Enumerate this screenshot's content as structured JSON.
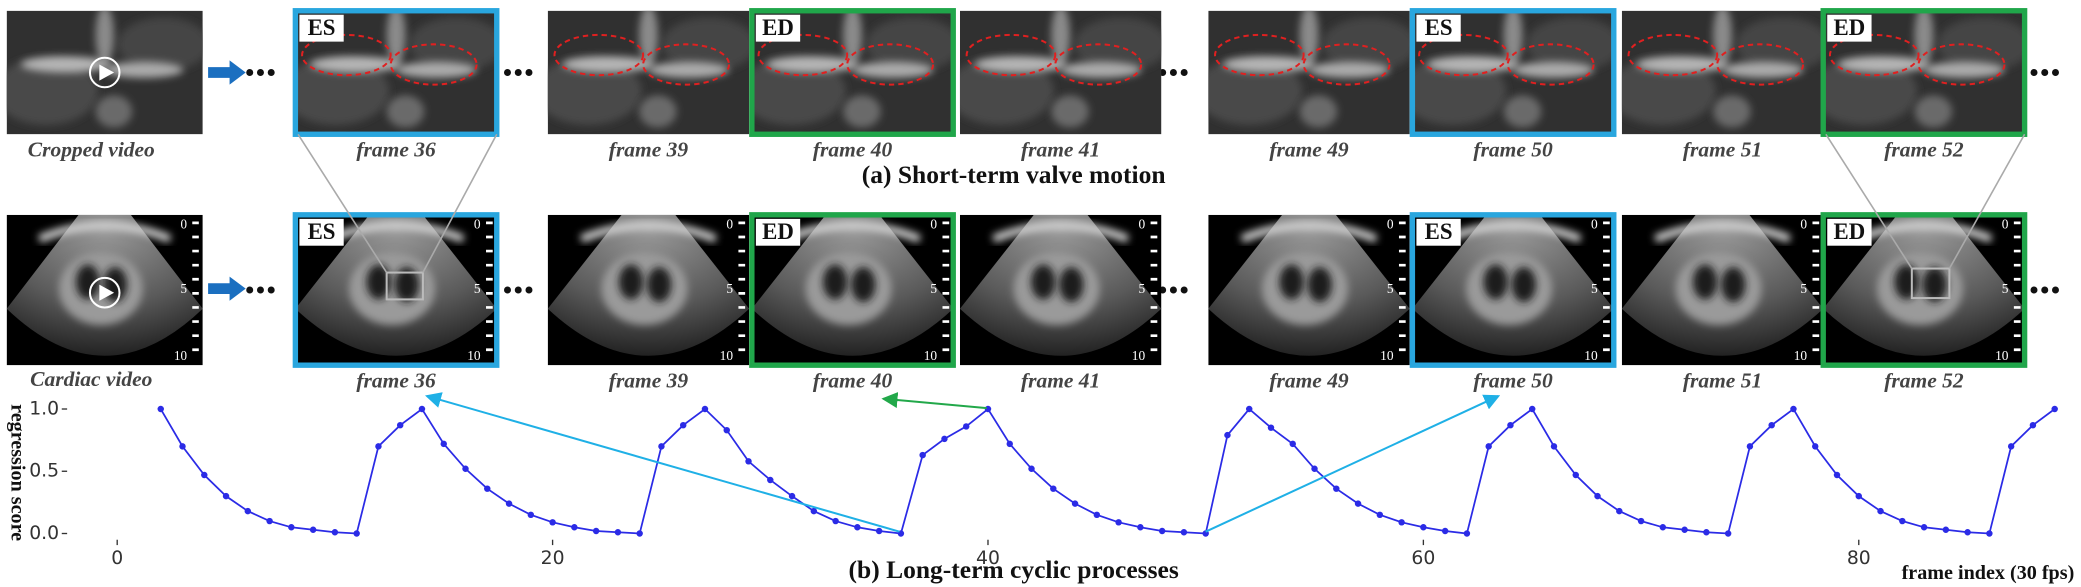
{
  "figure": {
    "row_a": {
      "source": "Cropped video",
      "caption": "(a) Short-term valve motion"
    },
    "row_b": {
      "source": "Cardiac video",
      "ruler": [
        0,
        5,
        10
      ]
    },
    "phase_colors": {
      "ES": "#29a6de",
      "ED": "#20a64a"
    },
    "frames": [
      {
        "label": "frame 36",
        "phase": "ES"
      },
      {
        "label": "frame 39"
      },
      {
        "label": "frame 40",
        "phase": "ED"
      },
      {
        "label": "frame 41"
      },
      {
        "label": "frame 49"
      },
      {
        "label": "frame 50",
        "phase": "ES"
      },
      {
        "label": "frame 51"
      },
      {
        "label": "frame 52",
        "phase": "ED"
      }
    ]
  },
  "chart_data": {
    "type": "line",
    "ylabel": "regression score",
    "xlabel": "frame index (30 fps)",
    "caption": "(b) Long-term cyclic processes",
    "x": [
      2,
      3,
      4,
      5,
      6,
      7,
      8,
      9,
      10,
      11,
      12,
      13,
      14,
      15,
      16,
      17,
      18,
      19,
      20,
      21,
      22,
      23,
      24,
      25,
      26,
      27,
      28,
      29,
      30,
      31,
      32,
      33,
      34,
      35,
      36,
      37,
      38,
      39,
      40,
      41,
      42,
      43,
      44,
      45,
      46,
      47,
      48,
      49,
      50,
      51,
      52,
      53,
      54,
      55,
      56,
      57,
      58,
      59,
      60,
      61,
      62,
      63,
      64,
      65,
      66,
      67,
      68,
      69,
      70,
      71,
      72,
      73,
      74,
      75,
      76,
      77,
      78,
      79,
      80,
      81,
      82,
      83,
      84,
      85,
      86,
      87,
      88,
      89
    ],
    "series": [
      {
        "color": "#2b2be6",
        "values": [
          1.0,
          0.7,
          0.47,
          0.3,
          0.18,
          0.1,
          0.05,
          0.03,
          0.01,
          0.0,
          0.7,
          0.87,
          1.0,
          0.72,
          0.52,
          0.36,
          0.24,
          0.15,
          0.09,
          0.05,
          0.02,
          0.01,
          0.0,
          0.7,
          0.87,
          1.0,
          0.83,
          0.58,
          0.43,
          0.3,
          0.18,
          0.1,
          0.05,
          0.02,
          0.0,
          0.63,
          0.76,
          0.86,
          1.0,
          0.72,
          0.52,
          0.36,
          0.24,
          0.15,
          0.09,
          0.05,
          0.02,
          0.01,
          0.0,
          0.79,
          1.0,
          0.85,
          0.72,
          0.52,
          0.36,
          0.24,
          0.15,
          0.09,
          0.05,
          0.02,
          0.0,
          0.7,
          0.87,
          1.0,
          0.7,
          0.47,
          0.3,
          0.18,
          0.1,
          0.05,
          0.03,
          0.01,
          0.0,
          0.7,
          0.87,
          1.0,
          0.7,
          0.47,
          0.3,
          0.18,
          0.1,
          0.05,
          0.03,
          0.01,
          0.0,
          0.7,
          0.87,
          1.0
        ]
      }
    ],
    "xlim": [
      -2.3,
      89.9
    ],
    "ylim": [
      -0.05,
      1.05
    ],
    "xticks": [
      0,
      20,
      40,
      60,
      80
    ],
    "yticks": [
      {
        "value": 0,
        "label": "0.0"
      },
      {
        "value": 0.5,
        "label": "0.5"
      },
      {
        "value": 1,
        "label": "1.0"
      }
    ]
  }
}
